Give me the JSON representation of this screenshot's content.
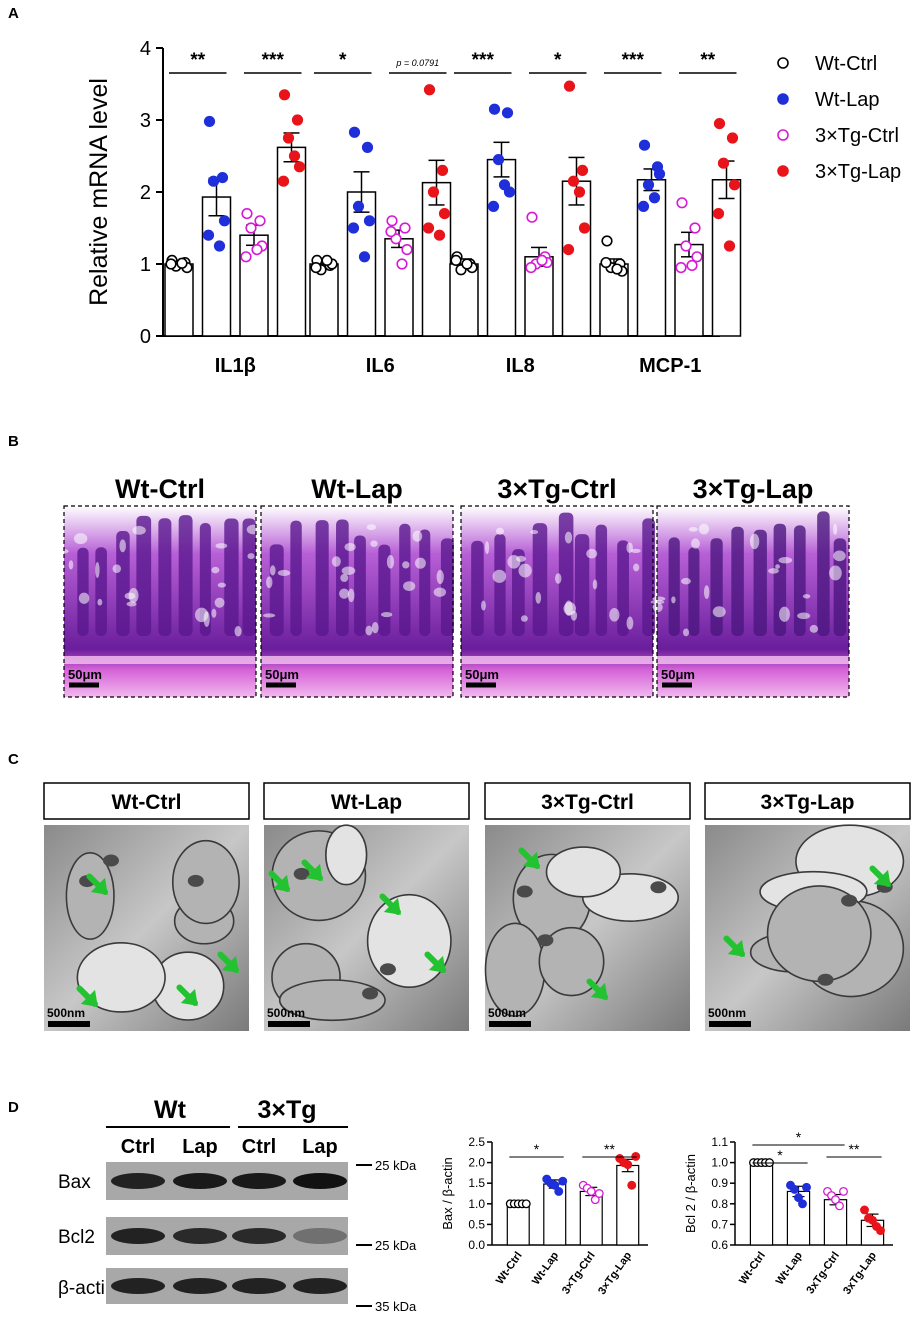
{
  "panels": {
    "A": "A",
    "B": "B",
    "C": "C",
    "D": "D"
  },
  "colors": {
    "wt_ctrl": "#000000",
    "wt_lap": "#1f2fd9",
    "tg_ctrl": "#d61ad6",
    "tg_lap": "#e8141a",
    "em_arrow": "#22c230",
    "he_stain": "#8a2ab0"
  },
  "panel_b": {
    "labels": [
      "Wt-Ctrl",
      "Wt-Lap",
      "3×Tg-Ctrl",
      "3×Tg-Lap"
    ],
    "scale_bar": "50μm"
  },
  "panel_c": {
    "labels": [
      "Wt-Ctrl",
      "Wt-Lap",
      "3×Tg-Ctrl",
      "3×Tg-Lap"
    ],
    "scale_bar": "500nm",
    "arrow_icon": "green-arrow-icon"
  },
  "blot": {
    "groups": [
      "Wt",
      "3×Tg"
    ],
    "lanes": [
      "Ctrl",
      "Lap",
      "Ctrl",
      "Lap"
    ],
    "rows": [
      "Bax",
      "Bcl2",
      "β-actin"
    ],
    "markers": [
      "25 kDa",
      "25 kDa",
      "35 kDa"
    ]
  },
  "chart_data": [
    {
      "type": "bar",
      "ylabel": "Relative mRNA level",
      "ylim": [
        0,
        4
      ],
      "yticks": [
        "0",
        "1",
        "2",
        "3",
        "4"
      ],
      "categories": [
        "IL1β",
        "IL6",
        "IL8",
        "MCP-1"
      ],
      "legend_position": "right",
      "series": [
        {
          "name": "Wt-Ctrl",
          "marker": "open-circle",
          "values": [
            1.0,
            1.0,
            1.0,
            1.0
          ],
          "sem": [
            0.05,
            0.07,
            0.07,
            0.07
          ],
          "points": [
            [
              1.05,
              1.02,
              0.97,
              0.95,
              1.0,
              1.01
            ],
            [
              1.05,
              0.98,
              0.92,
              1.0,
              0.95,
              1.05
            ],
            [
              1.1,
              1.0,
              0.92,
              0.95,
              1.05,
              1.0
            ],
            [
              1.32,
              1.0,
              0.95,
              0.9,
              1.02,
              0.93
            ]
          ]
        },
        {
          "name": "Wt-Lap",
          "marker": "filled-circle",
          "values": [
            1.93,
            2.0,
            2.45,
            2.17
          ],
          "sem": [
            0.26,
            0.28,
            0.24,
            0.15
          ],
          "points": [
            [
              2.98,
              2.2,
              2.15,
              1.6,
              1.4,
              1.25
            ],
            [
              2.83,
              2.62,
              1.8,
              1.6,
              1.5,
              1.1
            ],
            [
              3.15,
              3.1,
              2.45,
              2.0,
              1.8,
              2.1
            ],
            [
              2.65,
              2.35,
              2.1,
              2.25,
              1.8,
              1.92
            ]
          ]
        },
        {
          "name": "3×Tg-Ctrl",
          "marker": "open-circle",
          "values": [
            1.4,
            1.35,
            1.1,
            1.27
          ],
          "sem": [
            0.14,
            0.12,
            0.13,
            0.17
          ],
          "points": [
            [
              1.7,
              1.6,
              1.5,
              1.25,
              1.1,
              1.2
            ],
            [
              1.6,
              1.5,
              1.35,
              1.2,
              1.45,
              1.0
            ],
            [
              1.65,
              1.1,
              1.0,
              1.02,
              0.95,
              1.05
            ],
            [
              1.85,
              1.5,
              1.25,
              1.1,
              0.95,
              0.98
            ]
          ]
        },
        {
          "name": "3×Tg-Lap",
          "marker": "filled-circle",
          "values": [
            2.62,
            2.13,
            2.15,
            2.17
          ],
          "sem": [
            0.2,
            0.31,
            0.33,
            0.26
          ],
          "points": [
            [
              3.35,
              3.0,
              2.75,
              2.35,
              2.15,
              2.5
            ],
            [
              3.42,
              2.3,
              2.0,
              1.7,
              1.5,
              1.4
            ],
            [
              3.47,
              2.3,
              2.15,
              1.5,
              1.2,
              2.0
            ],
            [
              2.95,
              2.75,
              2.4,
              2.1,
              1.7,
              1.25
            ]
          ]
        }
      ],
      "annotations": [
        {
          "category": "IL1β",
          "from": "Wt-Ctrl",
          "to": "Wt-Lap",
          "text": "**"
        },
        {
          "category": "IL1β",
          "from": "3×Tg-Ctrl",
          "to": "3×Tg-Lap",
          "text": "***"
        },
        {
          "category": "IL6",
          "from": "Wt-Ctrl",
          "to": "Wt-Lap",
          "text": "*"
        },
        {
          "category": "IL6",
          "from": "3×Tg-Ctrl",
          "to": "3×Tg-Lap",
          "text": "p = 0.0791"
        },
        {
          "category": "IL8",
          "from": "Wt-Ctrl",
          "to": "Wt-Lap",
          "text": "***"
        },
        {
          "category": "IL8",
          "from": "3×Tg-Ctrl",
          "to": "3×Tg-Lap",
          "text": "*"
        },
        {
          "category": "MCP-1",
          "from": "Wt-Ctrl",
          "to": "Wt-Lap",
          "text": "***"
        },
        {
          "category": "MCP-1",
          "from": "3×Tg-Ctrl",
          "to": "3×Tg-Lap",
          "text": "**"
        }
      ]
    },
    {
      "type": "bar",
      "ylabel": "Bax / β-actin",
      "ylim": [
        0,
        2.5
      ],
      "yticks": [
        "0.0",
        "0.5",
        "1.0",
        "1.5",
        "2.0",
        "2.5"
      ],
      "categories": [
        "Wt-Ctrl",
        "Wt-Lap",
        "3×Tg-Ctrl",
        "3×Tg-Lap"
      ],
      "values": [
        1.0,
        1.48,
        1.3,
        1.93
      ],
      "sem": [
        0.0,
        0.1,
        0.1,
        0.15
      ],
      "points": [
        [
          1.0,
          1.0,
          1.0,
          1.0,
          1.0
        ],
        [
          1.6,
          1.5,
          1.45,
          1.3,
          1.55
        ],
        [
          1.45,
          1.38,
          1.3,
          1.1,
          1.25
        ],
        [
          2.1,
          2.0,
          1.95,
          1.45,
          2.15
        ]
      ],
      "annotations": [
        {
          "from": "Wt-Ctrl",
          "to": "Wt-Lap",
          "text": "*"
        },
        {
          "from": "3×Tg-Ctrl",
          "to": "3×Tg-Lap",
          "text": "**"
        }
      ]
    },
    {
      "type": "bar",
      "ylabel": "Bcl 2 / β-actin",
      "ylim": [
        0.6,
        1.1
      ],
      "yticks": [
        "0.6",
        "0.7",
        "0.8",
        "0.9",
        "1.0",
        "1.1"
      ],
      "categories": [
        "Wt-Ctrl",
        "Wt-Lap",
        "3xTg-Ctrl",
        "3xTg-Lap"
      ],
      "values": [
        1.0,
        0.86,
        0.82,
        0.72
      ],
      "sem": [
        0.0,
        0.025,
        0.025,
        0.03
      ],
      "points": [
        [
          1.0,
          1.0,
          1.0,
          1.0,
          1.0
        ],
        [
          0.89,
          0.87,
          0.83,
          0.8,
          0.88
        ],
        [
          0.86,
          0.84,
          0.82,
          0.79,
          0.86
        ],
        [
          0.77,
          0.73,
          0.72,
          0.69,
          0.67
        ]
      ],
      "annotations": [
        {
          "from": "Wt-Ctrl",
          "to": "Wt-Lap",
          "text": "*"
        },
        {
          "from": "Wt-Ctrl",
          "to": "3xTg-Ctrl",
          "text": "*"
        },
        {
          "from": "3xTg-Ctrl",
          "to": "3xTg-Lap",
          "text": "**"
        }
      ]
    }
  ]
}
